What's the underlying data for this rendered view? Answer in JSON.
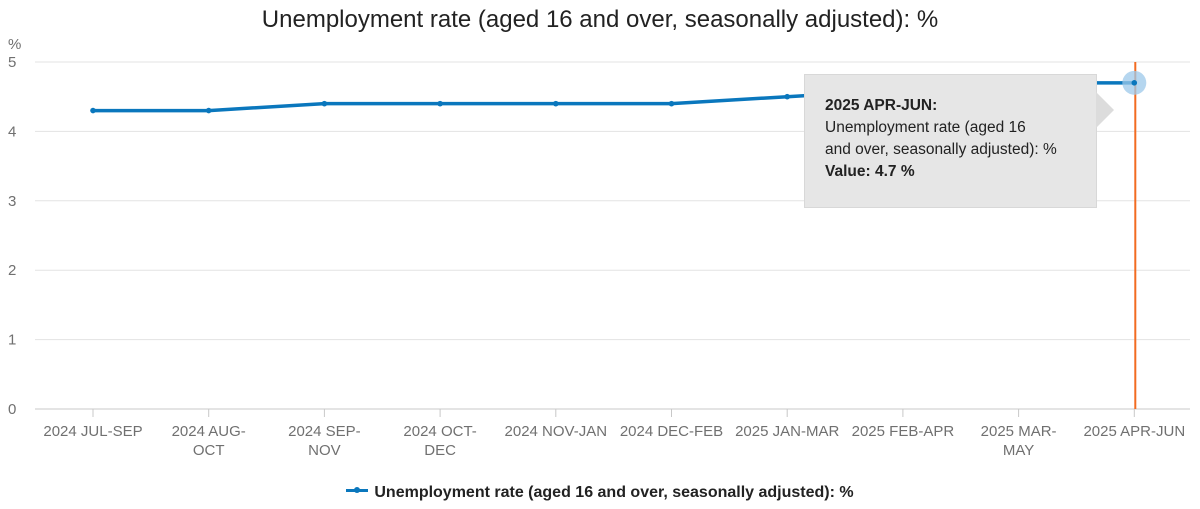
{
  "chart_data": {
    "type": "line",
    "title": "Unemployment rate (aged 16 and over, seasonally adjusted): %",
    "ylabel": "%",
    "xlabel": "",
    "ylim": [
      0,
      5
    ],
    "yticks": [
      0,
      1,
      2,
      3,
      4,
      5
    ],
    "grid": true,
    "legend_position": "bottom",
    "categories": [
      [
        "2024 JUL-SEP"
      ],
      [
        "2024 AUG-",
        "OCT"
      ],
      [
        "2024 SEP-",
        "NOV"
      ],
      [
        "2024 OCT-",
        "DEC"
      ],
      [
        "2024 NOV-JAN"
      ],
      [
        "2024 DEC-FEB"
      ],
      [
        "2025 JAN-MAR"
      ],
      [
        "2025 FEB-APR"
      ],
      [
        "2025 MAR-",
        "MAY"
      ],
      [
        "2025 APR-JUN"
      ]
    ],
    "series": [
      {
        "name": "Unemployment rate (aged 16 and over, seasonally adjusted): %",
        "color": "#0a77bd",
        "values": [
          4.3,
          4.3,
          4.4,
          4.4,
          4.4,
          4.4,
          4.5,
          4.6,
          4.7,
          4.7
        ]
      }
    ],
    "highlight_index": 9,
    "highlight_line_color": "#f26b21"
  },
  "tooltip": {
    "heading": "2025 APR-JUN:",
    "line1": "Unemployment rate (aged 16",
    "line2": "and over, seasonally adjusted): %",
    "value": "Value: 4.7 %"
  },
  "legend": {
    "label": "Unemployment rate (aged 16 and over, seasonally adjusted): %"
  }
}
